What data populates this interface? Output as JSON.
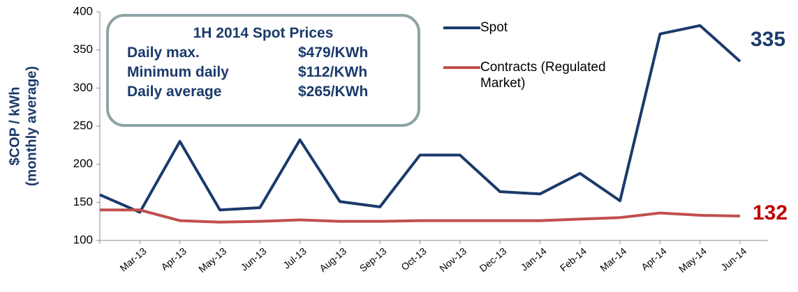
{
  "chart_data": {
    "type": "line",
    "y_label": [
      "$COP / kWh",
      "(monthly average)"
    ],
    "categories": [
      null,
      "Mar-13",
      "Apr-13",
      "May-13",
      "Jun-13",
      "Jul-13",
      "Aug-13",
      "Sep-13",
      "Oct-13",
      "Nov-13",
      "Dec-13",
      "Jan-14",
      "Feb-14",
      "Mar-14",
      "Apr-14",
      "May-14",
      "Jun-14"
    ],
    "series": [
      {
        "name": "Spot",
        "color": "#1b3a6b",
        "values": [
          160,
          137,
          230,
          140,
          143,
          232,
          151,
          144,
          212,
          212,
          164,
          161,
          188,
          152,
          371,
          382,
          335
        ]
      },
      {
        "name": "Contracts (Regulated Market)",
        "color": "#c0504d",
        "values": [
          140,
          140,
          126,
          124,
          125,
          127,
          125,
          125,
          126,
          126,
          126,
          126,
          128,
          130,
          136,
          133,
          132
        ]
      }
    ],
    "ylim": [
      100,
      400
    ],
    "yticks": [
      100,
      150,
      200,
      250,
      300,
      350,
      400
    ],
    "annotations": {
      "spot_last": "335",
      "contracts_last": "132",
      "box": {
        "title": "1H 2014 Spot Prices",
        "rows": [
          [
            "Daily max.",
            "$479/KWh"
          ],
          [
            "Minimum daily",
            "$112/KWh"
          ],
          [
            "Daily average",
            "$265/KWh"
          ]
        ]
      }
    },
    "legend": "top-right"
  }
}
